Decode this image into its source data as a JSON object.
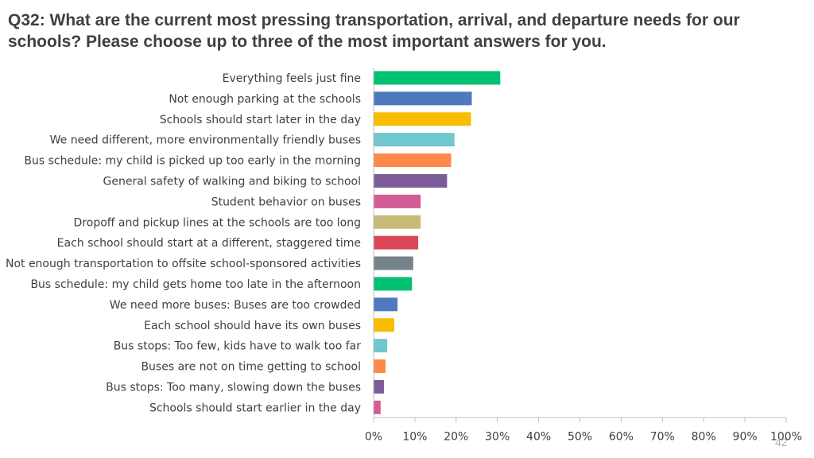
{
  "title": "Q32: What are the current most pressing transportation, arrival, and departure needs for our schools? Please choose up to three of the most important answers for you.",
  "page_number": "42",
  "chart_data": {
    "type": "bar",
    "orientation": "horizontal",
    "title": "Q32: What are the current most pressing transportation, arrival, and departure needs for our schools? Please choose up to three of the most important answers for you.",
    "categories": [
      "Everything feels just fine",
      "Not enough parking at the schools",
      "Schools should start later in the day",
      "We need different, more environmentally friendly buses",
      "Bus schedule: my child is picked up too early in the morning",
      "General safety of walking and biking to school",
      "Student behavior on buses",
      "Dropoff and pickup lines at the schools are too long",
      "Each school should start at a different, staggered time",
      "Not enough transportation to offsite school-sponsored activities",
      "Bus schedule: my child gets home too late in the afternoon",
      "We need more buses: Buses are too crowded",
      "Each school should have its own buses",
      "Bus stops: Too few, kids have to walk too far",
      "Buses are not on time getting to school",
      "Bus stops: Too many, slowing down the buses",
      "Schools should start earlier in the day"
    ],
    "values": [
      30.7,
      23.8,
      23.6,
      19.6,
      18.8,
      17.8,
      11.4,
      11.4,
      10.8,
      9.6,
      9.3,
      5.8,
      5.0,
      3.3,
      2.9,
      2.5,
      1.7
    ],
    "colors": [
      "#00c072",
      "#4f79bd",
      "#f7bd00",
      "#70c7cd",
      "#fd8a4a",
      "#7b5c98",
      "#d35c97",
      "#c9ba77",
      "#dc4657",
      "#75848a",
      "#00c072",
      "#4f79bd",
      "#f7bd00",
      "#70c7cd",
      "#fd8a4a",
      "#7b5c98",
      "#d35c97"
    ],
    "xlim": [
      0,
      100
    ],
    "xticks": [
      "0%",
      "10%",
      "20%",
      "30%",
      "40%",
      "50%",
      "60%",
      "70%",
      "80%",
      "90%",
      "100%"
    ],
    "xlabel": "",
    "ylabel": "",
    "grid": false
  }
}
